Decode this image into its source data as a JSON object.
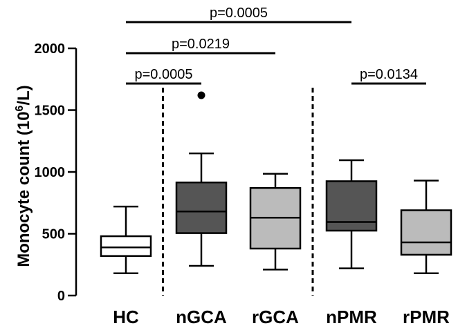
{
  "chart_data": {
    "type": "boxplot",
    "ylabel": "Monocyte count (10^6/L)",
    "ylabel_parts": {
      "pre": "Monocyte count (10",
      "sup": "6",
      "post": "/L)"
    },
    "ylim": [
      0,
      2000
    ],
    "yticks": [
      0,
      500,
      1000,
      1500,
      2000
    ],
    "yticks_labels": [
      "0",
      "500",
      "1000",
      "1500",
      "2000"
    ],
    "categories": [
      "HC",
      "nGCA",
      "rGCA",
      "nPMR",
      "rPMR"
    ],
    "boxes": [
      {
        "name": "HC",
        "whisker_low": 180,
        "q1": 320,
        "median": 390,
        "q3": 480,
        "whisker_high": 720,
        "color": "#ffffff",
        "outliers": []
      },
      {
        "name": "nGCA",
        "whisker_low": 240,
        "q1": 505,
        "median": 680,
        "q3": 915,
        "whisker_high": 1150,
        "color": "#555555",
        "outliers": [
          1620
        ]
      },
      {
        "name": "rGCA",
        "whisker_low": 210,
        "q1": 380,
        "median": 630,
        "q3": 870,
        "whisker_high": 985,
        "color": "#bbbbbb",
        "outliers": []
      },
      {
        "name": "nPMR",
        "whisker_low": 220,
        "q1": 525,
        "median": 595,
        "q3": 925,
        "whisker_high": 1095,
        "color": "#555555",
        "outliers": []
      },
      {
        "name": "rPMR",
        "whisker_low": 180,
        "q1": 330,
        "median": 430,
        "q3": 690,
        "whisker_high": 930,
        "color": "#bbbbbb",
        "outliers": []
      }
    ],
    "significance": [
      {
        "from": "HC",
        "to": "nGCA",
        "label": "p=0.0005"
      },
      {
        "from": "HC",
        "to": "rGCA",
        "label": "p=0.0219"
      },
      {
        "from": "HC",
        "to": "nPMR",
        "label": "p=0.0005"
      },
      {
        "from": "nPMR",
        "to": "rPMR",
        "label": "p=0.0134"
      }
    ],
    "separators": [
      {
        "between": [
          "HC",
          "nGCA"
        ]
      },
      {
        "between": [
          "rGCA",
          "nPMR"
        ]
      }
    ]
  }
}
